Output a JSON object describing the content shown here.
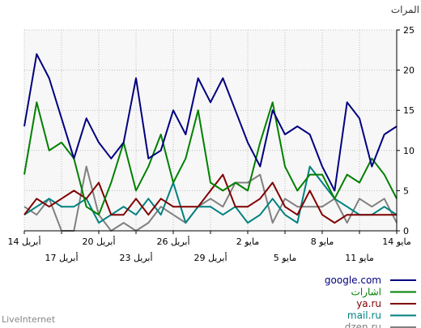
{
  "chart_data": {
    "type": "line",
    "ylabel": "المرات",
    "ylim": [
      0,
      25
    ],
    "y_ticks": [
      "0",
      "5",
      "10",
      "15",
      "20",
      "25"
    ],
    "grid": true,
    "legend_placement": "bottom-right",
    "x_ticks_top": [
      {
        "label": "14 مايو",
        "index": 0
      },
      {
        "label": "8 مايو",
        "index": 6
      },
      {
        "label": "2 مايو",
        "index": 12
      },
      {
        "label": "26 أبريل",
        "index": 18
      },
      {
        "label": "20 أبريل",
        "index": 24
      },
      {
        "label": "14 أبريل",
        "index": 30
      }
    ],
    "x_ticks_bottom": [
      {
        "label": "11 مايو",
        "index": 3
      },
      {
        "label": "5 مايو",
        "index": 9
      },
      {
        "label": "29 أبريل",
        "index": 15
      },
      {
        "label": "23 أبريل",
        "index": 21
      },
      {
        "label": "17 أبريل",
        "index": 27
      }
    ],
    "series": [
      {
        "name": "google.com",
        "color": "#000080",
        "values": [
          13,
          12,
          8,
          14,
          16,
          5,
          8,
          12,
          13,
          12,
          15,
          8,
          11,
          15,
          19,
          16,
          19,
          12,
          15,
          10,
          9,
          19,
          11,
          9,
          11,
          14,
          9,
          14,
          19,
          22,
          13
        ]
      },
      {
        "name": "اشارات",
        "color": "#008000",
        "values": [
          4,
          7,
          9,
          6,
          7,
          4,
          7,
          7,
          5,
          8,
          16,
          11,
          5,
          6,
          5,
          6,
          15,
          9,
          6,
          12,
          8,
          5,
          11,
          6,
          2,
          3,
          9,
          11,
          10,
          16,
          7
        ]
      },
      {
        "name": "ya.ru",
        "color": "#800000",
        "values": [
          2,
          2,
          2,
          2,
          2,
          1,
          2,
          5,
          2,
          3,
          6,
          4,
          3,
          3,
          7,
          5,
          3,
          3,
          3,
          4,
          2,
          4,
          2,
          2,
          6,
          4,
          5,
          4,
          3,
          4,
          2
        ]
      },
      {
        "name": "mail.ru",
        "color": "#008080",
        "values": [
          2,
          3,
          2,
          2,
          3,
          4,
          6,
          8,
          1,
          2,
          4,
          2,
          1,
          3,
          2,
          3,
          3,
          1,
          6,
          2,
          4,
          2,
          3,
          2,
          1,
          4,
          3,
          3,
          4,
          3,
          2
        ]
      },
      {
        "name": "dzen.ru",
        "color": "#808080",
        "values": [
          1,
          4,
          3,
          4,
          1,
          4,
          3,
          3,
          3,
          4,
          1,
          7,
          6,
          6,
          3,
          4,
          3,
          1,
          2,
          3,
          1,
          0,
          1,
          0,
          2,
          8,
          0,
          0,
          4,
          2,
          3
        ]
      }
    ]
  },
  "footer": "LiveInternet"
}
